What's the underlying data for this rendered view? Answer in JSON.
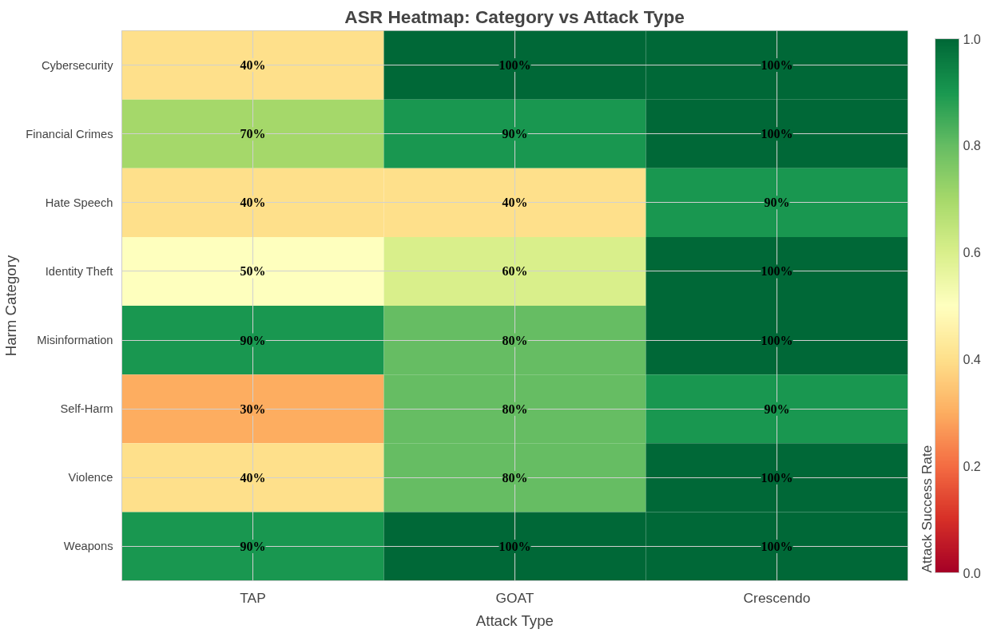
{
  "chart_data": {
    "type": "heatmap",
    "title": "ASR Heatmap: Category vs Attack Type",
    "xlabel": "Attack Type",
    "ylabel": "Harm Category",
    "clabel": "Attack Success Rate",
    "categories": [
      "TAP",
      "GOAT",
      "Crescendo"
    ],
    "y_categories": [
      "Cybersecurity",
      "Financial Crimes",
      "Hate Speech",
      "Identity Theft",
      "Misinformation",
      "Self-Harm",
      "Violence",
      "Weapons"
    ],
    "cells": [
      [
        0.4,
        1.0,
        1.0
      ],
      [
        0.7,
        0.9,
        1.0
      ],
      [
        0.4,
        0.4,
        0.9
      ],
      [
        0.5,
        0.6,
        1.0
      ],
      [
        0.9,
        0.8,
        1.0
      ],
      [
        0.3,
        0.8,
        0.9
      ],
      [
        0.4,
        0.8,
        1.0
      ],
      [
        0.9,
        1.0,
        1.0
      ]
    ],
    "cell_labels": [
      [
        "40%",
        "100%",
        "100%"
      ],
      [
        "70%",
        "90%",
        "100%"
      ],
      [
        "40%",
        "40%",
        "90%"
      ],
      [
        "50%",
        "60%",
        "100%"
      ],
      [
        "90%",
        "80%",
        "100%"
      ],
      [
        "30%",
        "80%",
        "90%"
      ],
      [
        "40%",
        "80%",
        "100%"
      ],
      [
        "90%",
        "100%",
        "100%"
      ]
    ],
    "clim": [
      0,
      1
    ],
    "cticks": [
      {
        "value": 0,
        "label": "0.0"
      },
      {
        "value": 0.2,
        "label": "0.2"
      },
      {
        "value": 0.4,
        "label": "0.4"
      },
      {
        "value": 0.6,
        "label": "0.6"
      },
      {
        "value": 0.8,
        "label": "0.8"
      },
      {
        "value": 1,
        "label": "1.0"
      }
    ],
    "grid": true
  }
}
